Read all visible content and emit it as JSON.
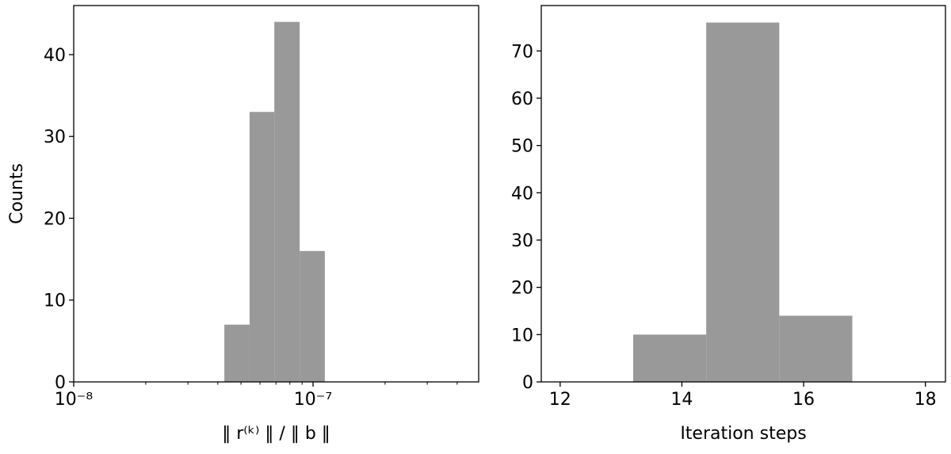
{
  "chart_data": [
    {
      "type": "histogram",
      "ylabel": "Counts",
      "xlabel": "‖ r⁽ᵏ⁾ ‖ / ‖ b ‖",
      "xscale": "log",
      "bins": [
        4.26e-08,
        5.43e-08,
        6.89e-08,
        8.79e-08,
        1.12e-07
      ],
      "values": [
        7,
        33,
        44,
        16
      ],
      "color": "#999999",
      "xlim": [
        1e-08,
        4.92e-07
      ],
      "ylim": [
        0,
        46
      ],
      "xticks": [
        {
          "value": 1e-08,
          "label": "10⁻⁸"
        },
        {
          "value": 1e-07,
          "label": "10⁻⁷"
        }
      ],
      "xminorticks": [
        2e-08,
        3e-08,
        4e-08,
        5e-08,
        6e-08,
        7e-08,
        8e-08,
        9e-08,
        2e-07,
        3e-07,
        4e-07
      ],
      "yticks": [
        0,
        10,
        20,
        30,
        40
      ]
    },
    {
      "type": "histogram",
      "xlabel": "Iteration steps",
      "xscale": "linear",
      "bins": [
        13.2,
        14.4,
        15.6,
        16.8
      ],
      "values": [
        10,
        76,
        14
      ],
      "color": "#999999",
      "xlim": [
        11.69,
        18.33
      ],
      "ylim": [
        0,
        79.6
      ],
      "xticks": [
        12,
        14,
        16,
        18
      ],
      "yticks": [
        0,
        10,
        20,
        30,
        40,
        50,
        60,
        70
      ]
    }
  ]
}
